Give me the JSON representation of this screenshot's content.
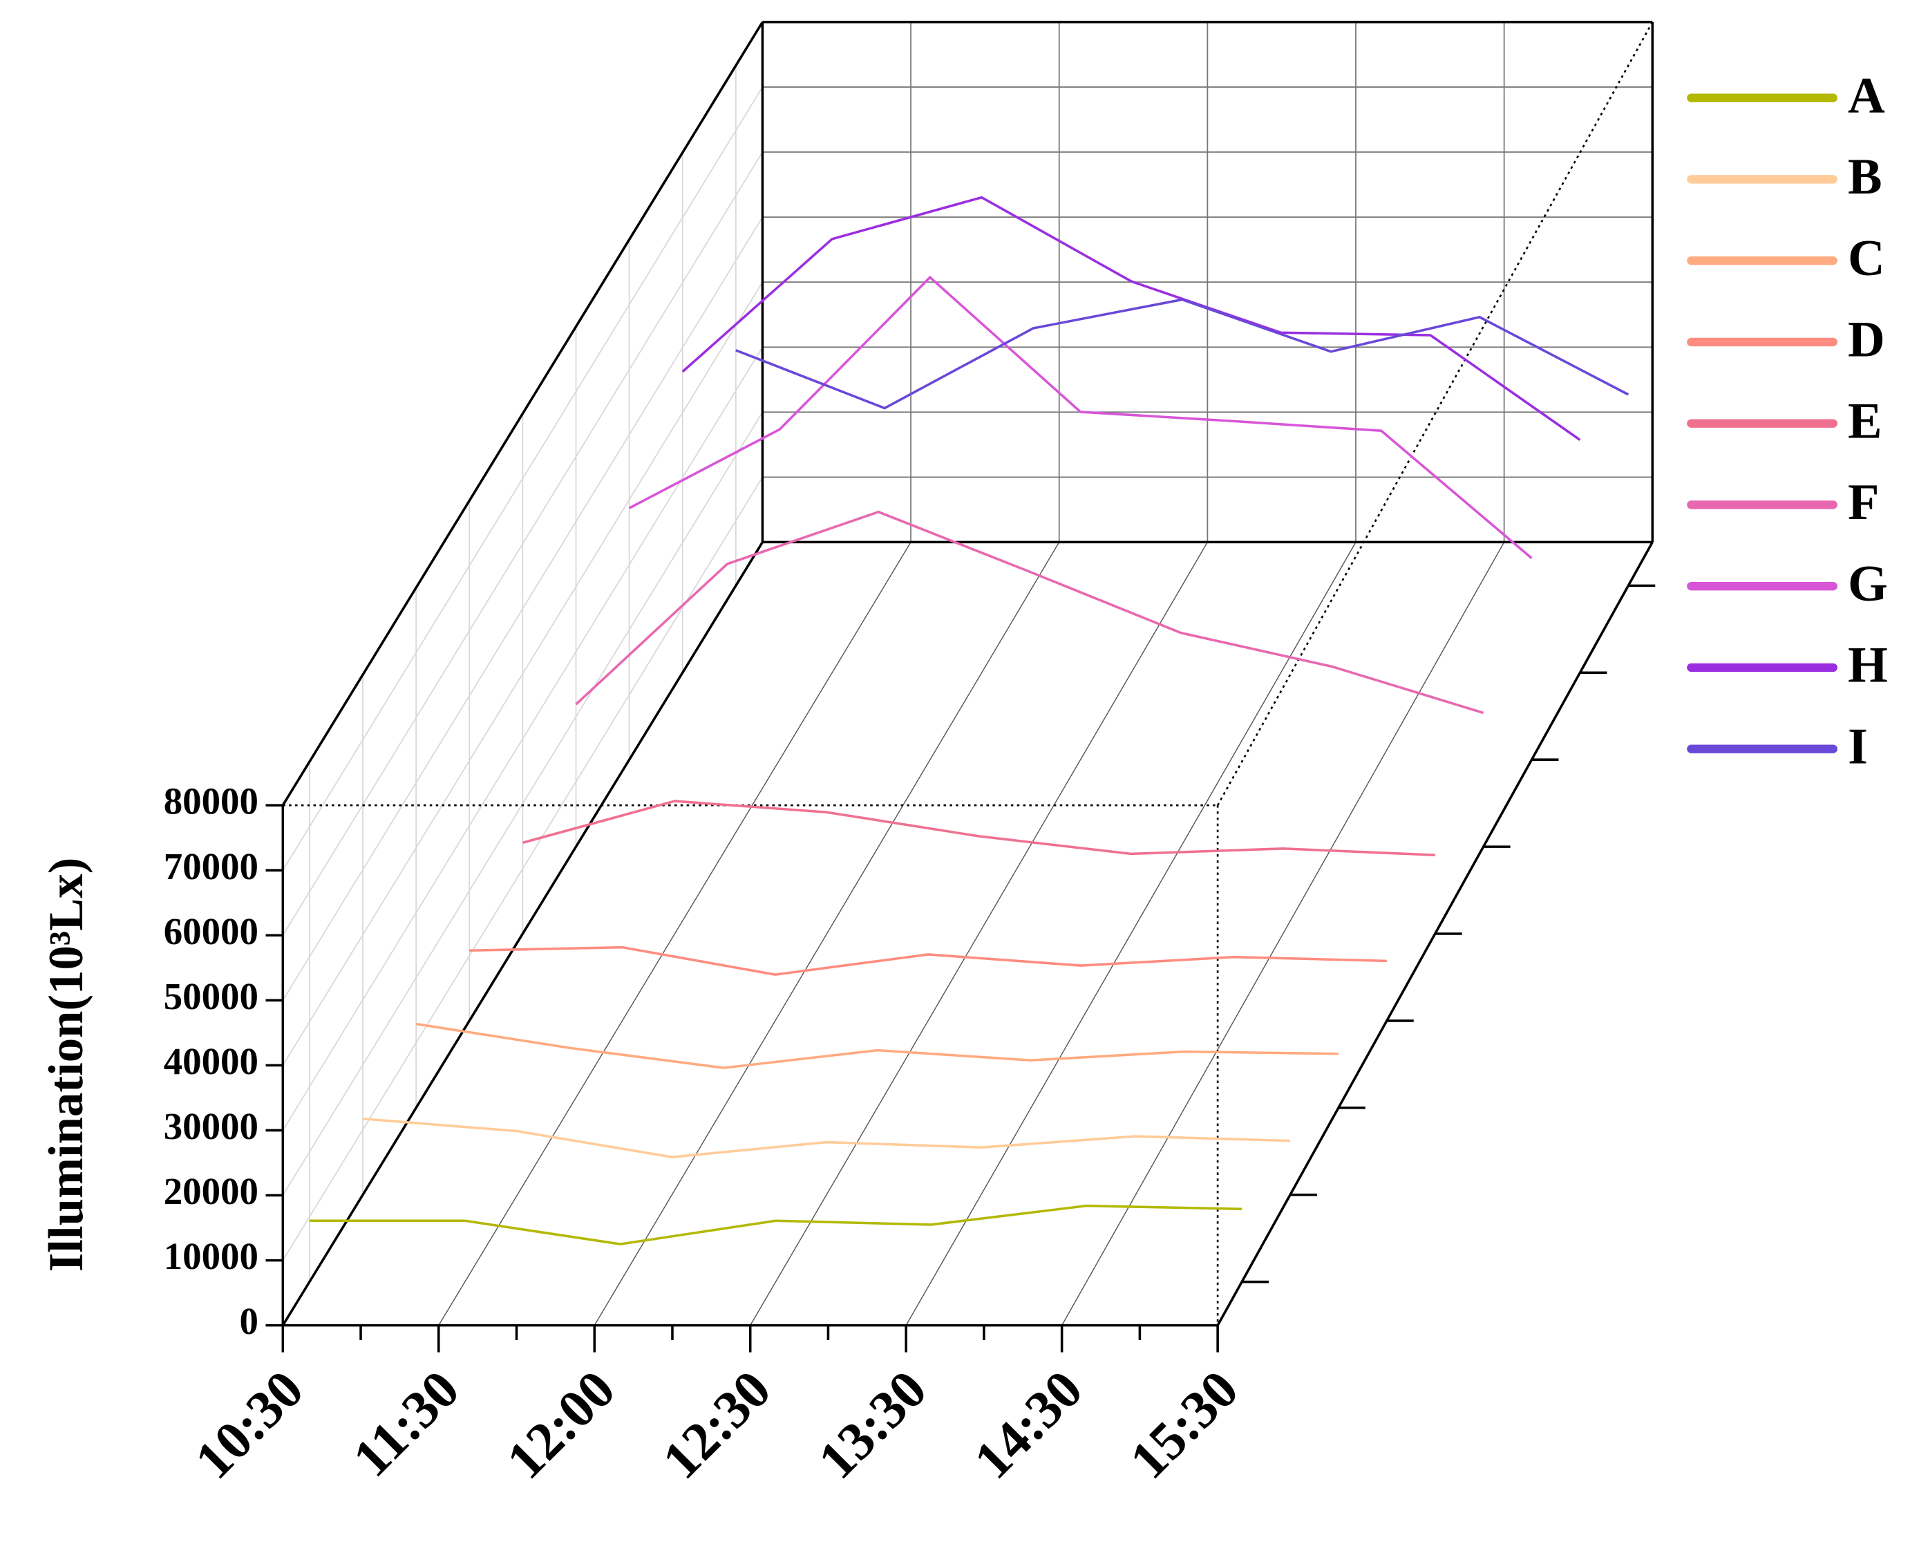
{
  "chart_data": {
    "type": "line",
    "ylabel": "Illumination(10³Lx)",
    "categories": [
      "10:30",
      "11:30",
      "12:00",
      "12:30",
      "13:30",
      "14:30",
      "15:30"
    ],
    "ylim": [
      0,
      80000
    ],
    "yticks": [
      0,
      10000,
      20000,
      30000,
      40000,
      50000,
      60000,
      70000,
      80000
    ],
    "grid": true,
    "legend": "right",
    "series": [
      {
        "name": "A",
        "color": "#b3b800",
        "values": [
          9400,
          9400,
          5800,
          9400,
          8800,
          11700,
          11200
        ]
      },
      {
        "name": "B",
        "color": "#ffcc99",
        "values": [
          11700,
          9800,
          5800,
          8100,
          7300,
          9000,
          8300
        ]
      },
      {
        "name": "C",
        "color": "#ffaa80",
        "values": [
          12900,
          9200,
          6150,
          8850,
          7300,
          8650,
          8300
        ]
      },
      {
        "name": "D",
        "color": "#ff8c80",
        "values": [
          10800,
          11300,
          7100,
          10200,
          8500,
          9800,
          9200
        ]
      },
      {
        "name": "E",
        "color": "#f07090",
        "values": [
          14000,
          20400,
          18700,
          15000,
          12300,
          13100,
          12100
        ]
      },
      {
        "name": "F",
        "color": "#e868b0",
        "values": [
          21900,
          43500,
          51500,
          42300,
          32900,
          27700,
          20600
        ]
      },
      {
        "name": "G",
        "color": "#d855d8",
        "values": [
          38700,
          50800,
          74200,
          53500,
          52100,
          50600,
          31000
        ]
      },
      {
        "name": "H",
        "color": "#9a2ee0",
        "values": [
          46300,
          66700,
          73100,
          60200,
          52300,
          51900,
          35800
        ]
      },
      {
        "name": "I",
        "color": "#6a48d8",
        "values": [
          36200,
          27300,
          39600,
          44000,
          36000,
          41300,
          29400
        ]
      }
    ]
  }
}
